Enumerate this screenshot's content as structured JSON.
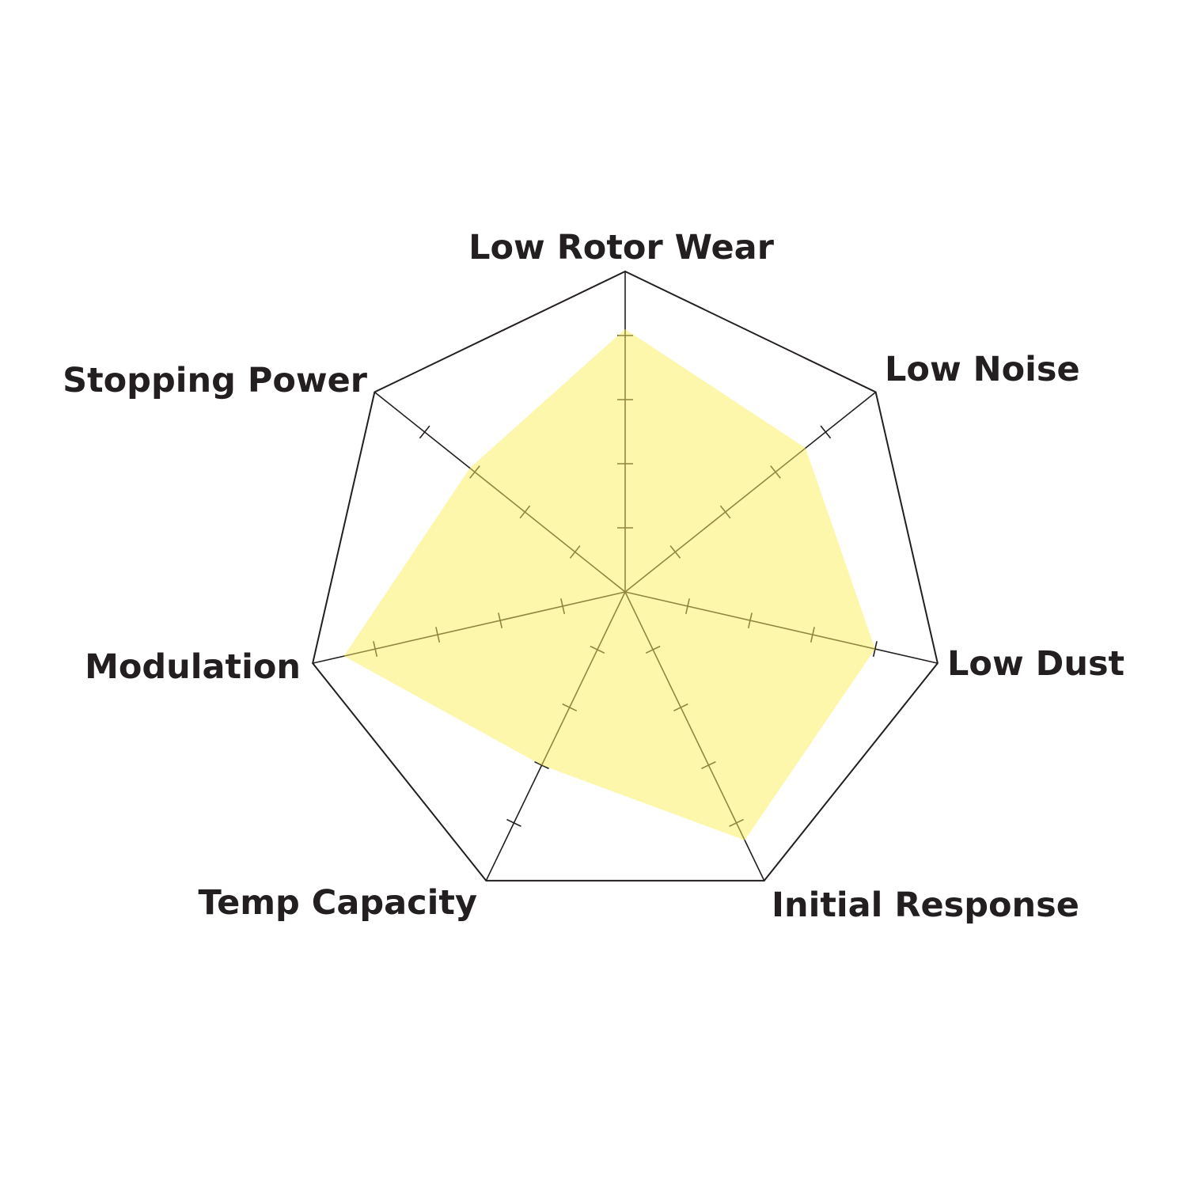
{
  "chart_data": {
    "type": "radar",
    "title": "",
    "categories": [
      "Low Rotor Wear",
      "Low Noise",
      "Low Dust",
      "Initial Response",
      "Temp Capacity",
      "Modulation",
      "Stopping Power"
    ],
    "series": [
      {
        "values": [
          4.1,
          3.6,
          4.0,
          4.3,
          3.0,
          4.5,
          3.1
        ],
        "color": "#fcf05a"
      }
    ],
    "rmax": 5,
    "tick_levels": [
      1,
      2,
      3,
      4
    ],
    "grid": "outer polygon only",
    "legend": "none"
  }
}
